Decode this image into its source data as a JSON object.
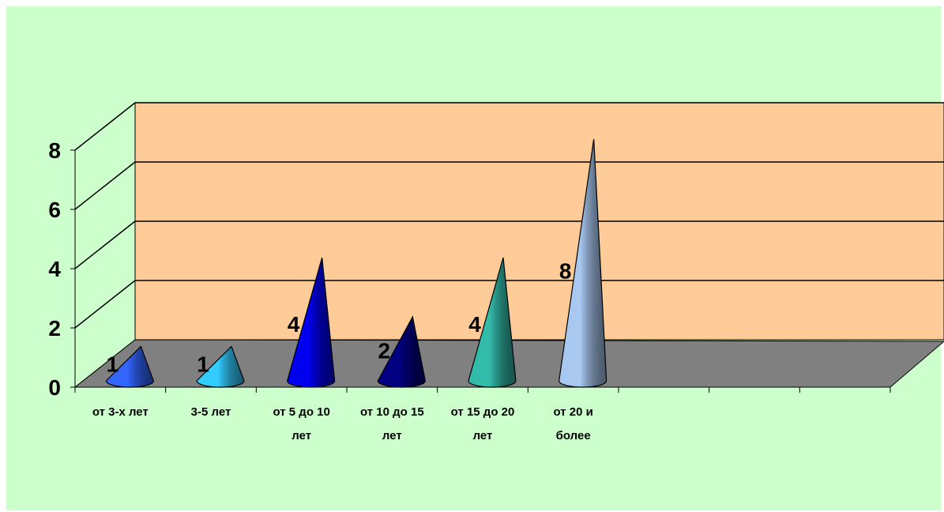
{
  "chart_data": {
    "type": "bar",
    "style": "3d-cone",
    "categories": [
      [
        "от 3-х лет"
      ],
      [
        "3-5 лет"
      ],
      [
        "от 5 до 10",
        "лет"
      ],
      [
        "от 10 до 15",
        "лет"
      ],
      [
        "от 15 до 20",
        "лет"
      ],
      [
        "от 20 и",
        "более"
      ]
    ],
    "values": [
      1,
      1,
      4,
      2,
      4,
      8
    ],
    "data_labels": [
      "1",
      "1",
      "4",
      "2",
      "4",
      "8"
    ],
    "y_ticks": [
      "0",
      "2",
      "4",
      "6",
      "8"
    ],
    "ylim": [
      0,
      8
    ],
    "grid": true,
    "legend": "none",
    "colors": [
      "#3366ff",
      "#33ccff",
      "#0000ee",
      "#000080",
      "#33bbaa",
      "#a8c8f0"
    ],
    "wall_color": "#ffcc99",
    "floor_color": "#808080",
    "background": "#ccffcc"
  }
}
